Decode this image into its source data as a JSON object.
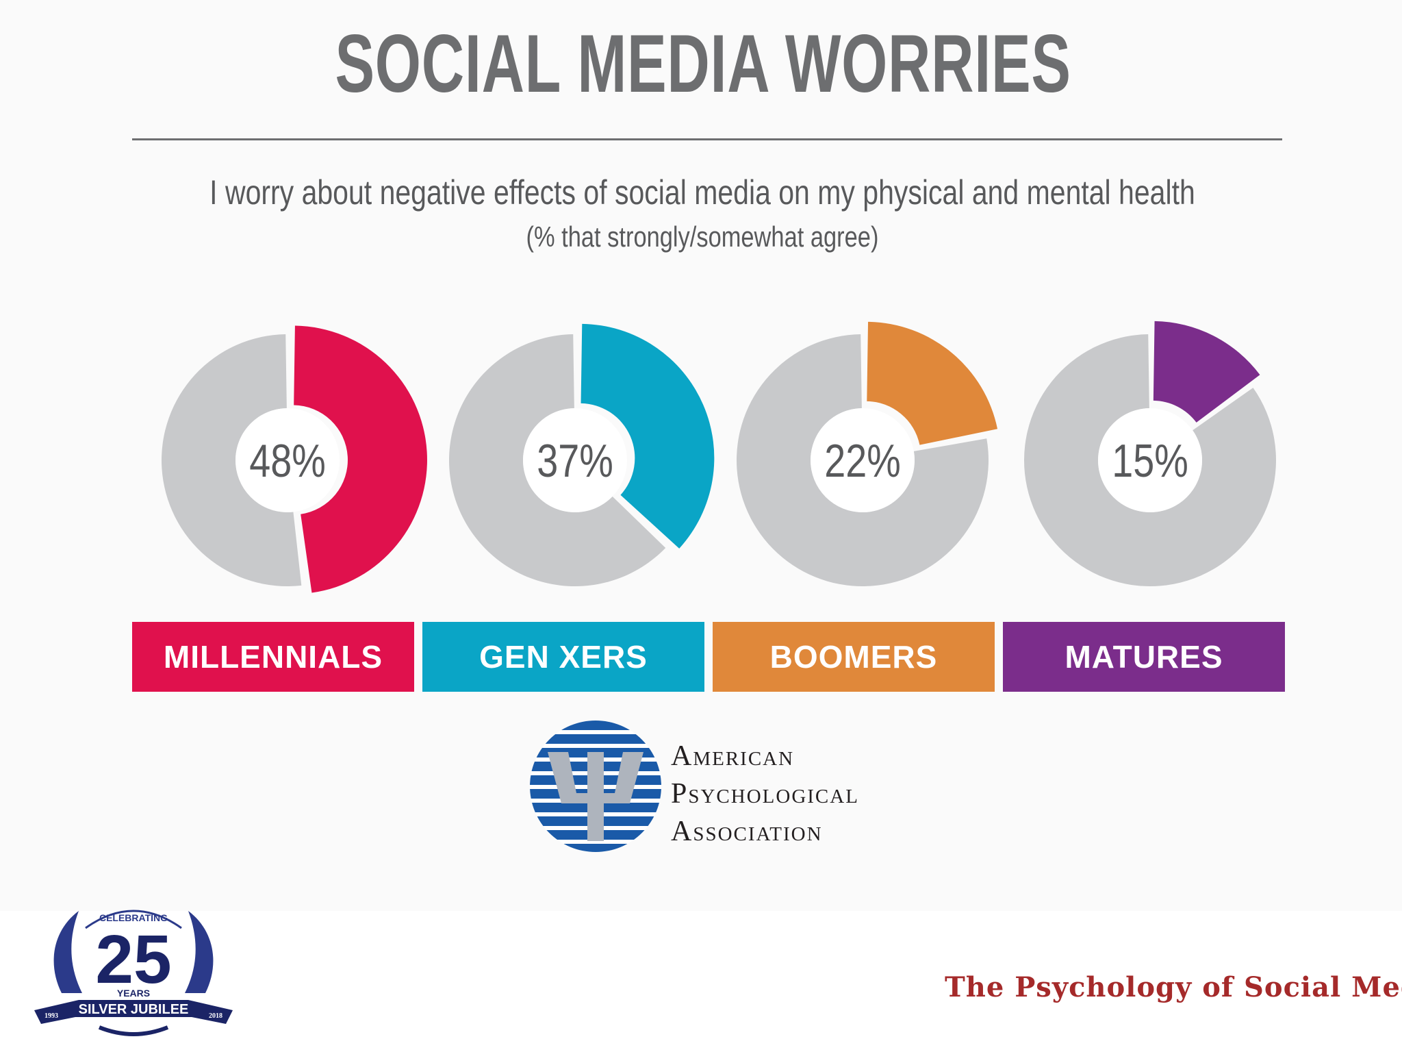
{
  "header": {
    "title": "SOCIAL MEDIA WORRIES",
    "subtitle": "I worry about negative effects of social media on my physical and mental health",
    "subtitle_note": "(% that strongly/somewhat agree)"
  },
  "chart_data": {
    "type": "pie",
    "title": "SOCIAL MEDIA WORRIES",
    "subtitle": "I worry about negative effects of social media on my physical and mental health",
    "note": "(% that strongly/somewhat agree)",
    "categories": [
      "MILLENNIALS",
      "GEN XERS",
      "BOOMERS",
      "MATURES"
    ],
    "values": [
      48,
      37,
      22,
      15
    ],
    "value_labels": [
      "48%",
      "37%",
      "22%",
      "15%"
    ],
    "colors": [
      "#e0114d",
      "#0aa5c6",
      "#e0883a",
      "#7b2d8b"
    ],
    "remainder_color": "#c8c9cb",
    "legend": "bottom"
  },
  "source": {
    "line1": "American",
    "line2": "Psychological",
    "line3": "Association"
  },
  "jubilee": {
    "celebrating": "CELEBRATING",
    "number": "25",
    "years": "YEARS",
    "banner": "SILVER JUBILEE",
    "start_year": "1993",
    "end_year": "2018"
  },
  "footer": {
    "title": "The  Psychology of Social Media"
  }
}
